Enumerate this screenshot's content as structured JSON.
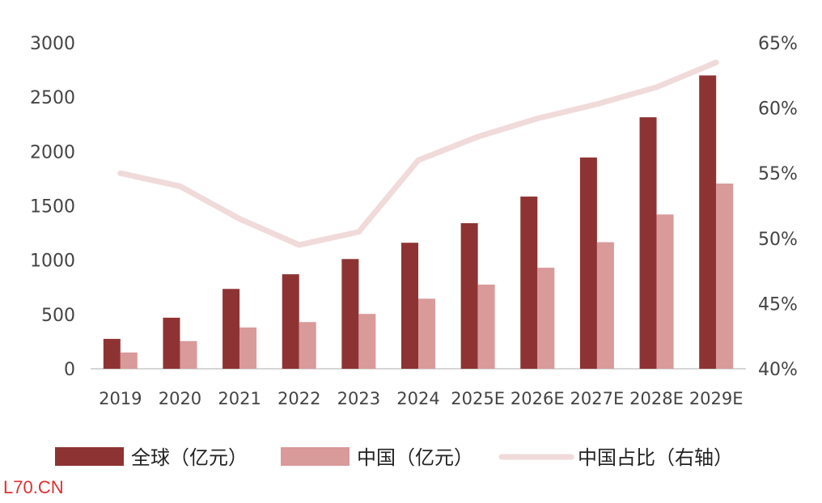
{
  "chart_data": {
    "type": "bar",
    "categories": [
      "2019",
      "2020",
      "2021",
      "2022",
      "2023",
      "2024",
      "2025E",
      "2026E",
      "2027E",
      "2028E",
      "2029E"
    ],
    "series": [
      {
        "name": "全球（亿元）",
        "type": "bar",
        "axis": "left",
        "color": "#8e3333",
        "values": [
          275,
          470,
          735,
          870,
          1010,
          1160,
          1340,
          1585,
          1945,
          2315,
          2700
        ]
      },
      {
        "name": "中国（亿元）",
        "type": "bar",
        "axis": "left",
        "color": "#d99a9a",
        "values": [
          150,
          255,
          380,
          430,
          505,
          645,
          775,
          930,
          1165,
          1420,
          1705
        ]
      },
      {
        "name": "中国占比（右轴）",
        "type": "line",
        "axis": "right",
        "color": "#f0dada",
        "values": [
          55.0,
          54.0,
          51.5,
          49.5,
          50.5,
          56.0,
          57.8,
          59.2,
          60.3,
          61.6,
          63.5
        ]
      }
    ],
    "y_left": {
      "min": 0,
      "max": 3000,
      "ticks": [
        "0",
        "500",
        "1000",
        "1500",
        "2000",
        "2500",
        "3000"
      ]
    },
    "y_right": {
      "min": 40,
      "max": 65,
      "ticks": [
        "40%",
        "45%",
        "50%",
        "55%",
        "60%",
        "65%"
      ]
    },
    "grid": false,
    "legend_position": "bottom"
  },
  "watermark": "L70.CN"
}
